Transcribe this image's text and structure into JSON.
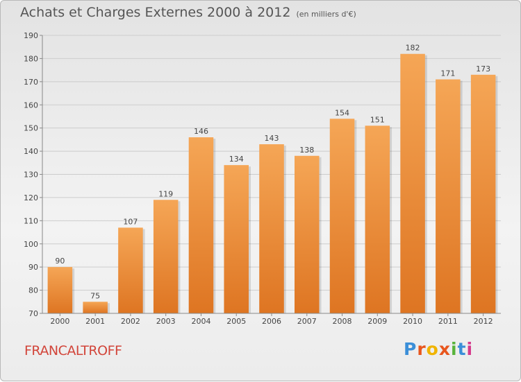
{
  "title": "Achats et Charges Externes 2000 à 2012",
  "unit_label": "(en milliers d'€)",
  "commune": "FRANCALTROFF",
  "logo": [
    "P",
    "r",
    "o",
    "x",
    "i",
    "t",
    "i"
  ],
  "colors": {
    "bar_top": "#f5a656",
    "bar_bottom": "#de7522",
    "grid": "#cccccc",
    "axis": "#888888",
    "commune": "#d2453a"
  },
  "chart_data": {
    "type": "bar",
    "title": "Achats et Charges Externes 2000 à 2012",
    "subtitle": "(en milliers d'€)",
    "categories": [
      "2000",
      "2001",
      "2002",
      "2003",
      "2004",
      "2005",
      "2006",
      "2007",
      "2008",
      "2009",
      "2010",
      "2011",
      "2012"
    ],
    "values": [
      90,
      75,
      107,
      119,
      146,
      134,
      143,
      138,
      154,
      151,
      182,
      171,
      173
    ],
    "data_labels": [
      "90",
      "75",
      "107",
      "119",
      "146",
      "134",
      "143",
      "138",
      "154",
      "151",
      "182",
      "171",
      "173"
    ],
    "ylim": [
      70,
      190
    ],
    "yticks": [
      70,
      80,
      90,
      100,
      110,
      120,
      130,
      140,
      150,
      160,
      170,
      180,
      190
    ],
    "grid": true,
    "xlabel": "",
    "ylabel": ""
  }
}
